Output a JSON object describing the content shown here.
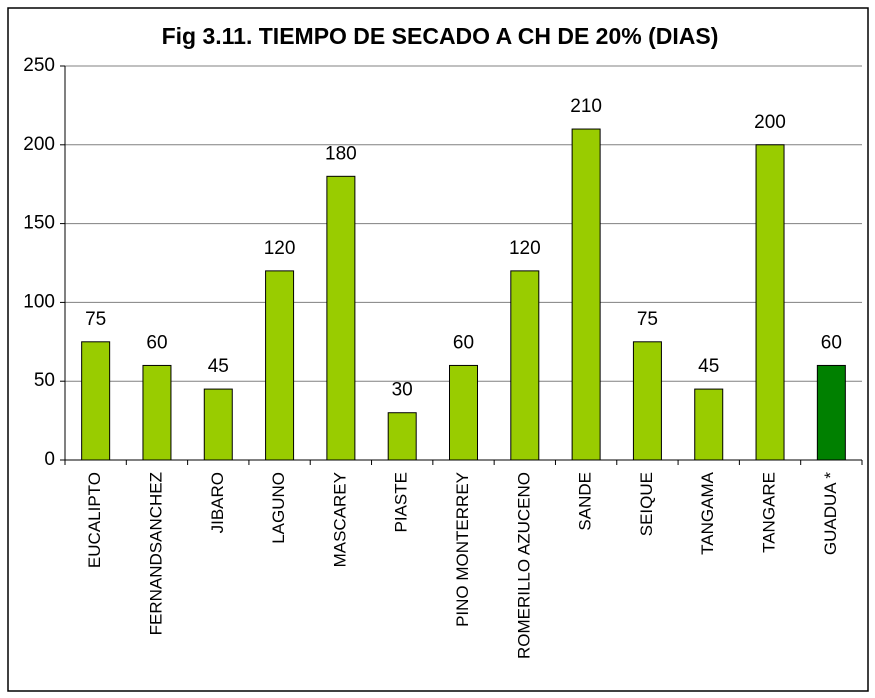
{
  "chart_data": {
    "type": "bar",
    "title": "Fig 3.11. TIEMPO DE SECADO A CH DE 20% (DIAS)",
    "categories": [
      "EUCALIPTO",
      "FERNANDSANCHEZ",
      "JIBARO",
      "LAGUNO",
      "MASCAREY",
      "PIASTE",
      "PINO MONTERREY",
      "ROMERILLO AZUCENO",
      "SANDE",
      "SEIQUE",
      "TANGAMA",
      "TANGARE",
      "GUADUA *"
    ],
    "values": [
      75,
      60,
      45,
      120,
      180,
      30,
      60,
      120,
      210,
      75,
      45,
      200,
      60
    ],
    "colors": [
      "#99cc00",
      "#99cc00",
      "#99cc00",
      "#99cc00",
      "#99cc00",
      "#99cc00",
      "#99cc00",
      "#99cc00",
      "#99cc00",
      "#99cc00",
      "#99cc00",
      "#99cc00",
      "#008000"
    ],
    "ylim": [
      0,
      250
    ],
    "yticks": [
      0,
      50,
      100,
      150,
      200,
      250
    ],
    "grid": true
  }
}
